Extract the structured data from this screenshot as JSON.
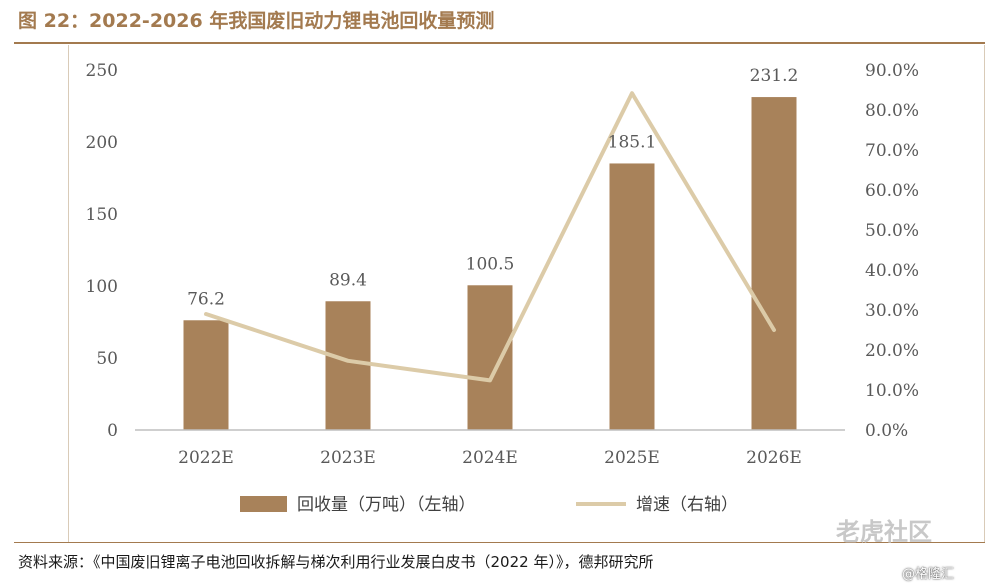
{
  "title": "图 22：2022-2026 年我国废旧动力锂电池回收量预测",
  "source": "资料来源：《中国废旧锂离子电池回收拆解与梯次利用行业发展白皮书（2022 年）》，德邦研究所",
  "watermark": "老虎社区",
  "watermark2": "@格隆汇",
  "chart_data": {
    "type": "bar",
    "categories": [
      "2022E",
      "2023E",
      "2024E",
      "2025E",
      "2026E"
    ],
    "series": [
      {
        "name": "回收量（万吨）（左轴）",
        "type": "bar",
        "axis": "left",
        "values": [
          76.2,
          89.4,
          100.5,
          185.1,
          231.2
        ]
      },
      {
        "name": "增速（右轴）",
        "type": "line",
        "axis": "right",
        "values": [
          29.0,
          17.3,
          12.4,
          84.2,
          25.0
        ]
      }
    ],
    "ylim_left": [
      0,
      250
    ],
    "yticks_left": [
      "0",
      "50",
      "100",
      "150",
      "200",
      "250"
    ],
    "ylim_right": [
      0,
      90
    ],
    "yticks_right": [
      "0.0%",
      "10.0%",
      "20.0%",
      "30.0%",
      "40.0%",
      "50.0%",
      "60.0%",
      "70.0%",
      "80.0%",
      "90.0%"
    ],
    "data_labels": [
      "76.2",
      "89.4",
      "100.5",
      "185.1",
      "231.2"
    ],
    "legend": [
      "回收量（万吨）（左轴）",
      "增速（右轴）"
    ],
    "legend_position": "bottom",
    "colors": {
      "bar": "#a8825a",
      "line": "#dccba8",
      "axis": "#bfbfbf"
    },
    "grid": false
  }
}
